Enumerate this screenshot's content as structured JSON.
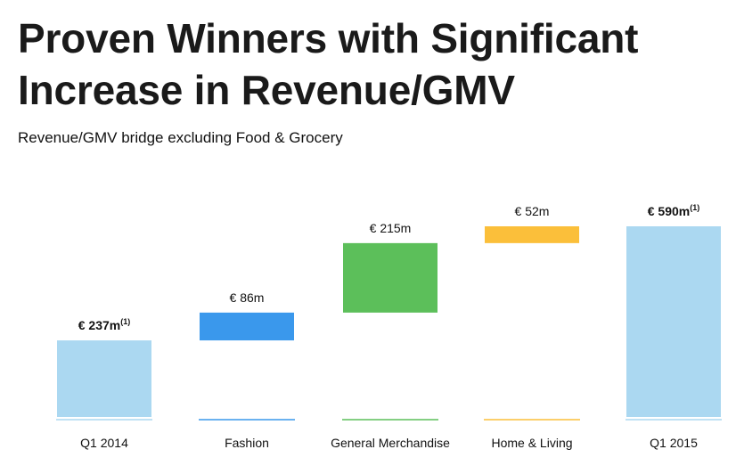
{
  "title_line1": "Proven Winners with Significant",
  "title_line2": "Increase in Revenue/GMV",
  "subtitle": "Revenue/GMV bridge excluding Food & Grocery",
  "chart_data": {
    "type": "bar",
    "subtype": "waterfall",
    "categories": [
      "Q1 2014",
      "Fashion",
      "General Merchandise",
      "Home & Living",
      "Q1 2015"
    ],
    "values": [
      237,
      86,
      215,
      52,
      590
    ],
    "kinds": [
      "total",
      "increase",
      "increase",
      "increase",
      "total"
    ],
    "labels": [
      "€ 237m",
      "€ 86m",
      "€ 215m",
      "€ 52m",
      "€ 590m"
    ],
    "label_superscripts": [
      "(1)",
      "",
      "",
      "",
      "(1)"
    ],
    "label_bold": [
      true,
      false,
      false,
      false,
      true
    ],
    "colors": [
      "#abd8f1",
      "#3a98ec",
      "#5cbf5a",
      "#fbbf3a",
      "#abd8f1"
    ],
    "ylim": [
      0,
      600
    ],
    "xlabel": "",
    "ylabel": ""
  }
}
